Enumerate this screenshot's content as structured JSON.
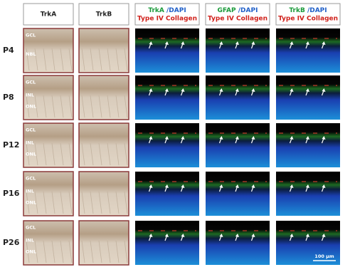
{
  "columns": [
    {
      "title": "TrkA"
    },
    {
      "title": "TrkB"
    },
    {
      "marker": "TrkA",
      "counterstain": "/DAPI",
      "collagen": "Type IV Collagen"
    },
    {
      "marker": "GFAP",
      "counterstain": "/DAPI",
      "collagen": "Type IV Collagen"
    },
    {
      "marker": "TrkB",
      "counterstain": "/DAPI",
      "collagen": "Type IV Collagen"
    }
  ],
  "rows": [
    {
      "label": "P4",
      "layers": [
        "GCL",
        "NBL"
      ]
    },
    {
      "label": "P8",
      "layers": [
        "GCL",
        "INL",
        "ONL"
      ]
    },
    {
      "label": "P12",
      "layers": [
        "GCL",
        "INL",
        "ONL"
      ]
    },
    {
      "label": "P16",
      "layers": [
        "GCL",
        "INL",
        "ONL"
      ]
    },
    {
      "label": "P26",
      "layers": [
        "GCL",
        "INL",
        "ONL"
      ]
    }
  ],
  "scale_bar": "100 µm"
}
